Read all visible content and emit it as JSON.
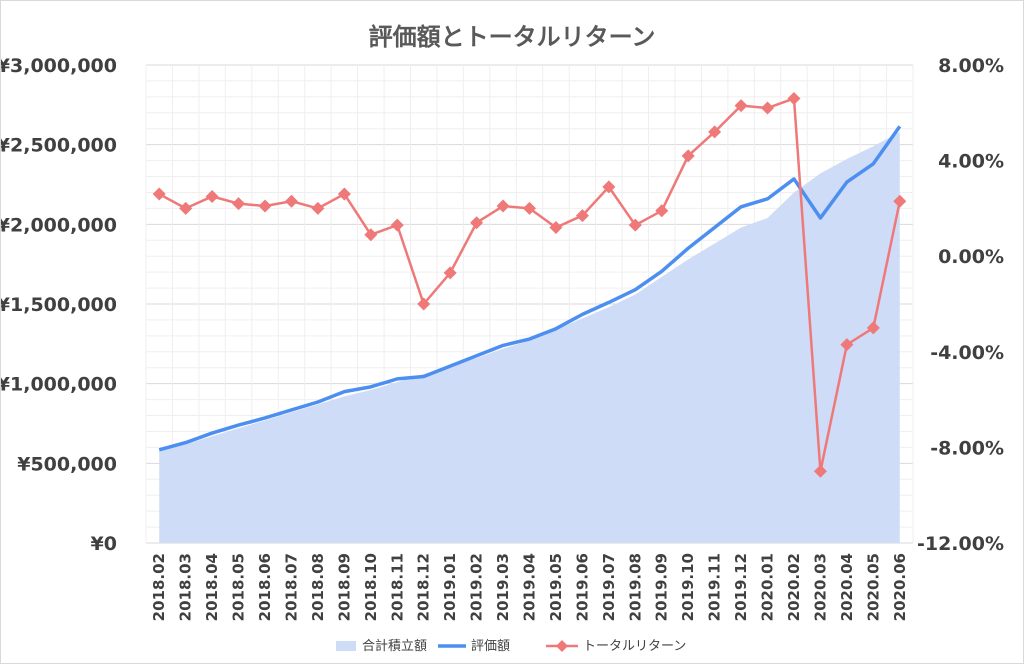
{
  "chart_data": {
    "type": "line",
    "title": "評価額とトータルリターン",
    "categories": [
      "2018.02",
      "2018.03",
      "2018.04",
      "2018.05",
      "2018.06",
      "2018.07",
      "2018.08",
      "2018.09",
      "2018.10",
      "2018.11",
      "2018.12",
      "2019.01",
      "2019.02",
      "2019.03",
      "2019.04",
      "2019.05",
      "2019.06",
      "2019.07",
      "2019.08",
      "2019.09",
      "2019.10",
      "2019.11",
      "2019.12",
      "2020.01",
      "2020.02",
      "2020.03",
      "2020.04",
      "2020.05",
      "2020.06"
    ],
    "y_left": {
      "min": 0,
      "max": 3000000,
      "ticks": [
        "¥0",
        "¥500,000",
        "¥1,000,000",
        "¥1,500,000",
        "¥2,000,000",
        "¥2,500,000",
        "¥3,000,000"
      ]
    },
    "y_right": {
      "min": -12,
      "max": 8,
      "ticks": [
        "-12.00%",
        "-8.00%",
        "-4.00%",
        "0.00%",
        "4.00%",
        "8.00%"
      ]
    },
    "series": [
      {
        "name": "合計積立額",
        "type": "area",
        "axis": "left",
        "color": "#cfdcf7",
        "values": [
          580000,
          620000,
          670000,
          720000,
          770000,
          820000,
          870000,
          920000,
          960000,
          1010000,
          1060000,
          1110000,
          1160000,
          1220000,
          1270000,
          1340000,
          1410000,
          1480000,
          1560000,
          1670000,
          1780000,
          1880000,
          1980000,
          2040000,
          2200000,
          2320000,
          2410000,
          2490000,
          2580000
        ]
      },
      {
        "name": "評価額",
        "type": "line",
        "axis": "left",
        "color": "#4d8ff0",
        "values": [
          585000,
          630000,
          690000,
          740000,
          785000,
          835000,
          885000,
          950000,
          980000,
          1030000,
          1045000,
          1110000,
          1175000,
          1240000,
          1280000,
          1345000,
          1435000,
          1510000,
          1590000,
          1705000,
          1850000,
          1980000,
          2110000,
          2160000,
          2285000,
          2040000,
          2265000,
          2380000,
          2615000
        ]
      },
      {
        "name": "トータルリターン",
        "type": "line",
        "axis": "right",
        "color": "#ef7878",
        "values": [
          2.6,
          2.0,
          2.5,
          2.2,
          2.1,
          2.3,
          2.0,
          2.6,
          0.9,
          1.3,
          -2.0,
          -0.7,
          1.4,
          2.1,
          2.0,
          1.2,
          1.7,
          2.9,
          1.3,
          1.9,
          4.2,
          5.2,
          6.3,
          6.2,
          6.6,
          -9.0,
          -3.7,
          -3.0,
          2.3
        ]
      }
    ],
    "grid": true,
    "legend_position": "bottom"
  }
}
